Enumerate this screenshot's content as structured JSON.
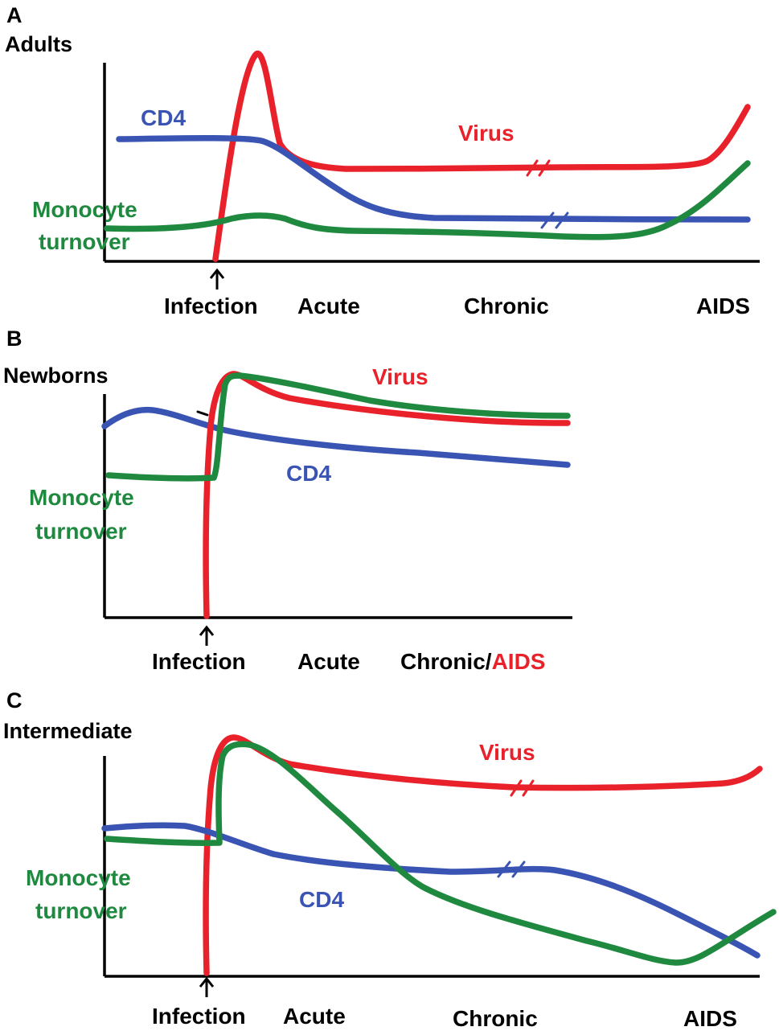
{
  "colors": {
    "virus": "#e8212a",
    "cd4": "#3a54b4",
    "monocyte": "#1f8a3f",
    "aids": "#e8212a",
    "text": "#000000"
  },
  "panels": [
    {
      "id": "A",
      "letter": "A",
      "title": "Adults",
      "labels": {
        "virus": "Virus",
        "cd4": "CD4",
        "monocyte_line1": "Monocyte",
        "monocyte_line2": "turnover"
      },
      "stages": {
        "infection": "Infection",
        "acute": "Acute",
        "chronic": "Chronic",
        "aids": "AIDS"
      }
    },
    {
      "id": "B",
      "letter": "B",
      "title": "Newborns",
      "labels": {
        "virus": "Virus",
        "cd4": "CD4",
        "monocyte_line1": "Monocyte",
        "monocyte_line2": "turnover"
      },
      "stages": {
        "infection": "Infection",
        "acute": "Acute",
        "chronic": "Chronic/",
        "aids": "AIDS"
      }
    },
    {
      "id": "C",
      "letter": "C",
      "title": "Intermediate",
      "labels": {
        "virus": "Virus",
        "cd4": "CD4",
        "monocyte_line1": "Monocyte",
        "monocyte_line2": "turnover"
      },
      "stages": {
        "infection": "Infection",
        "acute": "Acute",
        "chronic": "Chronic",
        "aids": "AIDS"
      }
    }
  ]
}
